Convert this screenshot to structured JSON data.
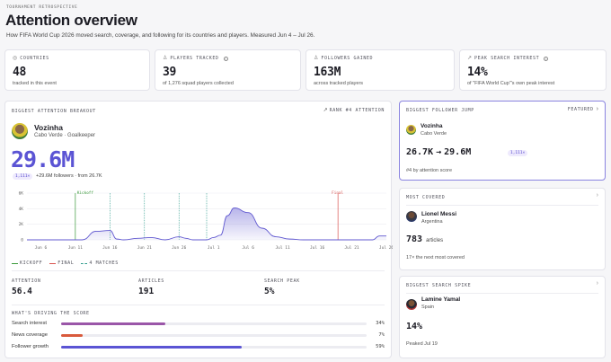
{
  "header": {
    "eyebrow": "TOURNAMENT RETROSPECTIVE",
    "title": "Attention overview",
    "subtitle": "How FIFA World Cup 2026 moved search, coverage, and following for its countries and players. Measured Jun 4 – Jul 26."
  },
  "kpis": [
    {
      "label": "COUNTRIES",
      "icon": "globe-icon",
      "value": "48",
      "sub": "tracked in this event",
      "info": false
    },
    {
      "label": "PLAYERS TRACKED",
      "icon": "person-icon",
      "value": "39",
      "sub": "of 1,276 squad players collected",
      "info": true
    },
    {
      "label": "FOLLOWERS GAINED",
      "icon": "users-icon",
      "value": "163M",
      "sub": "across tracked players",
      "info": false
    },
    {
      "label": "PEAK SEARCH INTEREST",
      "icon": "trend-icon",
      "value": "14%",
      "sub": "of \"FIFA World Cup\"'s own peak interest",
      "info": true
    }
  ],
  "breakout": {
    "caption": "BIGGEST ATTENTION BREAKOUT",
    "rank_label": "RANK #4 ATTENTION",
    "player_name": "Vozinha",
    "player_meta": "Cabo Verde · Goalkeeper",
    "big_value": "29.6M",
    "badge": "1,111×",
    "followers_text": "+29.6M followers · from 26.7K",
    "legend": {
      "kickoff": "KICKOFF",
      "final": "FINAL",
      "matches": "4 MATCHES"
    },
    "stats": [
      {
        "label": "ATTENTION",
        "value": "56.4"
      },
      {
        "label": "ARTICLES",
        "value": "191"
      },
      {
        "label": "SEARCH PEAK",
        "value": "5%"
      }
    ],
    "drivers_caption": "WHAT'S DRIVING THE SCORE",
    "drivers": [
      {
        "label": "Search interest",
        "value": 34,
        "text": "34%",
        "color": "#9a56a8"
      },
      {
        "label": "News coverage",
        "value": 7,
        "text": "7%",
        "color": "#d95a3c"
      },
      {
        "label": "Follower growth",
        "value": 59,
        "text": "59%",
        "color": "#5b54d4"
      }
    ]
  },
  "chart_data": {
    "type": "area",
    "x": [
      "Jun 4",
      "Jun 6",
      "Jun 8",
      "Jun 10",
      "Jun 11",
      "Jun 12",
      "Jun 14",
      "Jun 16",
      "Jun 17",
      "Jun 18",
      "Jun 20",
      "Jun 22",
      "Jun 24",
      "Jun 26",
      "Jun 27",
      "Jun 28",
      "Jun 30",
      "Jul 1",
      "Jul 2",
      "Jul 3",
      "Jul 4",
      "Jul 6",
      "Jul 8",
      "Jul 10",
      "Jul 12",
      "Jul 14",
      "Jul 16",
      "Jul 18",
      "Jul 19",
      "Jul 20",
      "Jul 22",
      "Jul 24",
      "Jul 25",
      "Jul 26"
    ],
    "values": [
      0,
      0,
      0,
      0,
      0,
      0,
      1.1,
      1.2,
      0.1,
      0,
      0.2,
      0.3,
      0,
      0.4,
      0.2,
      0,
      0,
      0.3,
      0.6,
      3.1,
      4.1,
      3.5,
      1.5,
      0.4,
      0.1,
      0,
      0,
      0,
      0,
      0,
      0,
      0,
      0.5,
      0.5
    ],
    "x_ticks": [
      "Jun 6",
      "Jun 11",
      "Jun 16",
      "Jun 21",
      "Jun 26",
      "Jul 1",
      "Jul 6",
      "Jul 11",
      "Jul 16",
      "Jul 21",
      "Jul 26"
    ],
    "y_ticks": [
      "0",
      "2K",
      "4K",
      "6K"
    ],
    "ylim": [
      0,
      6
    ],
    "markers": {
      "kickoff_label": "Kickoff",
      "final_label": "Final"
    },
    "color": "#6058d0"
  },
  "featured": {
    "caption": "BIGGEST FOLLOWER JUMP",
    "tag": "FEATURED",
    "name": "Vozinha",
    "country": "Cabo Verde",
    "from": "26.7K",
    "arrow": "→",
    "to": "29.6M",
    "badge": "1,111×",
    "foot": "#4 by attention score"
  },
  "covered": {
    "caption": "MOST COVERED",
    "name": "Lionel Messi",
    "country": "Argentina",
    "value": "783",
    "unit": "articles",
    "foot": "17× the next most covered"
  },
  "spike": {
    "caption": "BIGGEST SEARCH SPIKE",
    "name": "Lamine Yamal",
    "country": "Spain",
    "value": "14%",
    "foot": "Peaked Jul 19"
  }
}
